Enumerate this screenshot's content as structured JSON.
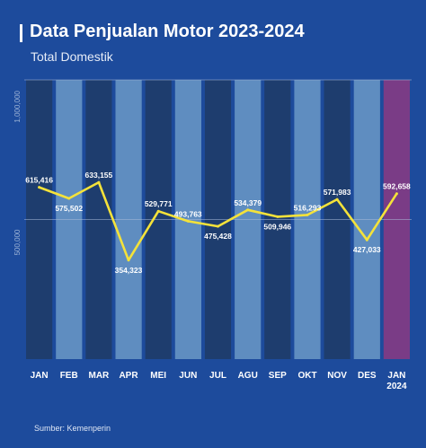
{
  "title": "Data Penjualan Motor 2023-2024",
  "subtitle": "Total Domestik",
  "source": "Sumber:  Kemenperin",
  "colors": {
    "background": "#1d4b9c",
    "band_dark": "#1e3d6e",
    "band_light": "#5f8dc0",
    "band_highlight": "#7a3c86",
    "line": "#f4e23a"
  },
  "chart_data": {
    "type": "line",
    "title": "Data Penjualan Motor 2023-2024",
    "subtitle": "Total Domestik",
    "xlabel": "",
    "ylabel": "",
    "categories": [
      "JAN",
      "FEB",
      "MAR",
      "APR",
      "MEI",
      "JUN",
      "JUL",
      "AGU",
      "SEP",
      "OKT",
      "NOV",
      "DES",
      "JAN\n2024"
    ],
    "series": [
      {
        "values": [
          615416,
          575502,
          633155,
          354323,
          529771,
          493763,
          475428,
          534379,
          509946,
          516293,
          571983,
          427033,
          592658
        ]
      }
    ],
    "data_labels": [
      "615,416",
      "575,502",
      "633,155",
      "354,323",
      "529,771",
      "493,763",
      "475,428",
      "534,379",
      "509,946",
      "516,293",
      "571,983",
      "427,033",
      "592,658"
    ],
    "y_ticks": [
      500000,
      1000000
    ],
    "y_tick_labels": [
      "500,000",
      "1,000,000"
    ],
    "ylim": [
      0,
      1000000
    ],
    "grid": true,
    "highlight_category": "JAN\n2024"
  }
}
